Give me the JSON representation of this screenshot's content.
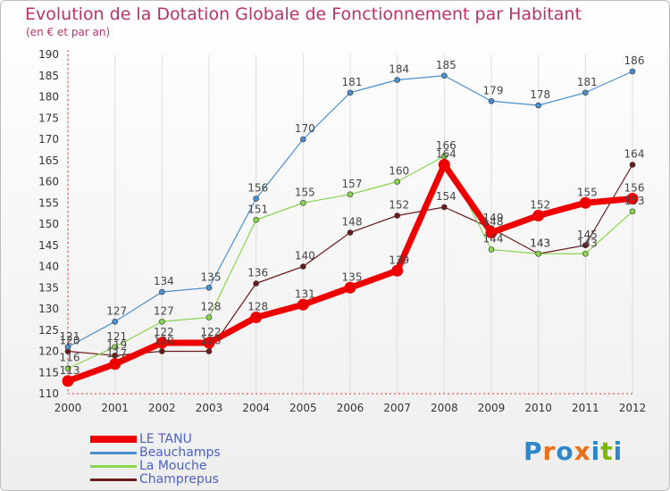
{
  "chart_data": {
    "type": "line",
    "title": "Evolution de la Dotation Globale de Fonctionnement par Habitant",
    "subtitle": "(en € et par an)",
    "x": [
      "2000",
      "2001",
      "2002",
      "2003",
      "2004",
      "2005",
      "2006",
      "2007",
      "2008",
      "2009",
      "2010",
      "2011",
      "2012"
    ],
    "y_ticks": [
      110,
      115,
      120,
      125,
      130,
      135,
      140,
      145,
      150,
      155,
      160,
      165,
      170,
      175,
      180,
      185,
      190
    ],
    "ylim": [
      110,
      190
    ],
    "series": [
      {
        "name": "LE TANU",
        "color": "#ee0000",
        "values": [
          113,
          117,
          122,
          122,
          128,
          131,
          135,
          139,
          164,
          148,
          152,
          155,
          156
        ]
      },
      {
        "name": "Beauchamps",
        "color": "#4a8fd0",
        "values": [
          121,
          127,
          134,
          135,
          156,
          170,
          181,
          184,
          185,
          179,
          178,
          181,
          186
        ]
      },
      {
        "name": "La Mouche",
        "color": "#88d64f",
        "values": [
          116,
          121,
          127,
          128,
          151,
          155,
          157,
          160,
          166,
          144,
          143,
          143,
          153
        ]
      },
      {
        "name": "Champrepus",
        "color": "#6d1a1a",
        "values": [
          120,
          119,
          120,
          120,
          136,
          140,
          148,
          152,
          154,
          149,
          143,
          145,
          164
        ]
      }
    ]
  },
  "logo": {
    "letters": [
      "P",
      "r",
      "o",
      "x",
      "i",
      "t",
      "i"
    ],
    "colors": [
      "#2d87c8",
      "#e8701a",
      "#2d87c8",
      "#e8701a",
      "#2d87c8",
      "#7ab800",
      "#2d87c8"
    ]
  }
}
